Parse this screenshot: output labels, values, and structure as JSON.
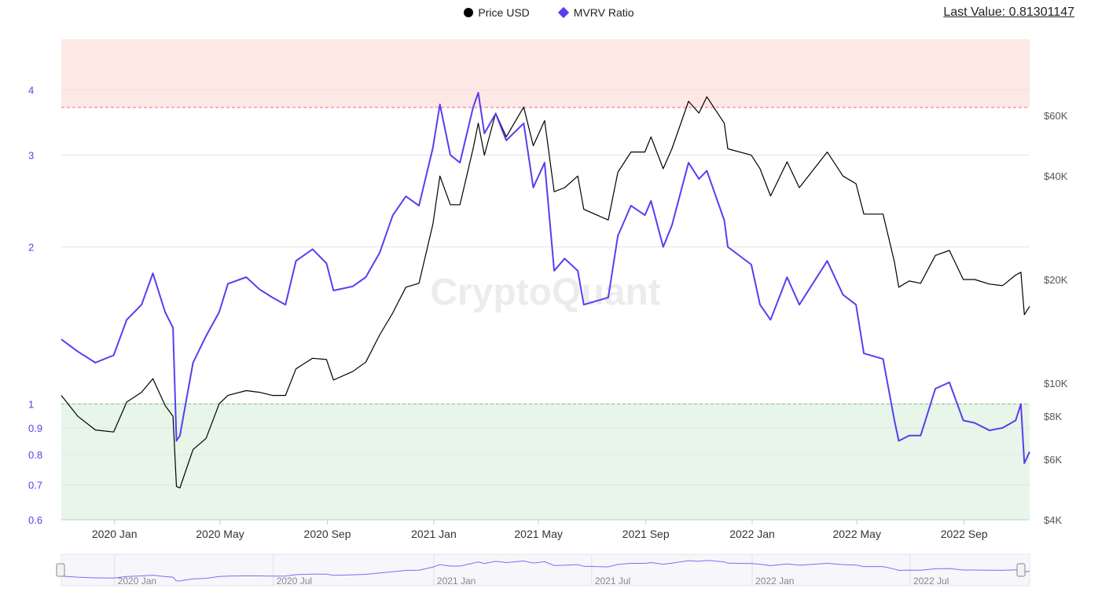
{
  "legend": {
    "price": {
      "label": "Price USD",
      "color": "#000000"
    },
    "mvrv": {
      "label": "MVRV Ratio",
      "color": "#5a3df0"
    }
  },
  "last_value": "Last Value: 0.81301147",
  "watermark": "CryptoQuant",
  "zones": {
    "upper_threshold": 3.7,
    "upper_color": "#fde8e6",
    "upper_line_color": "#e57373",
    "lower_threshold": 1.0,
    "lower_color": "#e8f5e9",
    "lower_line_color": "#7cc47f"
  },
  "chart_data": {
    "type": "line",
    "x_start": "2019-11-01",
    "x_end": "2022-11-15",
    "x_ticks": [
      {
        "date": "2020-01-01",
        "label": "2020 Jan"
      },
      {
        "date": "2020-05-01",
        "label": "2020 May"
      },
      {
        "date": "2020-09-01",
        "label": "2020 Sep"
      },
      {
        "date": "2021-01-01",
        "label": "2021 Jan"
      },
      {
        "date": "2021-05-01",
        "label": "2021 May"
      },
      {
        "date": "2021-09-01",
        "label": "2021 Sep"
      },
      {
        "date": "2022-01-01",
        "label": "2022 Jan"
      },
      {
        "date": "2022-05-01",
        "label": "2022 May"
      },
      {
        "date": "2022-09-01",
        "label": "2022 Sep"
      }
    ],
    "y_left": {
      "scale": "log",
      "range": [
        0.6,
        5.0
      ],
      "ticks": [
        0.6,
        0.7,
        0.8,
        0.9,
        1,
        2,
        3,
        4
      ],
      "labels": [
        "0.6",
        "0.7",
        "0.8",
        "0.9",
        "1",
        "2",
        "3",
        "4"
      ],
      "color": "#5a3df0"
    },
    "y_right": {
      "scale": "log",
      "range": [
        4000,
        100000
      ],
      "ticks": [
        4000,
        6000,
        8000,
        10000,
        20000,
        40000,
        60000
      ],
      "labels": [
        "$4K",
        "$6K",
        "$8K",
        "$10K",
        "$20K",
        "$40K",
        "$60K"
      ]
    },
    "series": [
      {
        "name": "Price USD",
        "axis": "right",
        "color": "#000000",
        "points": [
          [
            "2019-11-01",
            9200
          ],
          [
            "2019-11-20",
            8000
          ],
          [
            "2019-12-10",
            7300
          ],
          [
            "2019-12-31",
            7200
          ],
          [
            "2020-01-15",
            8800
          ],
          [
            "2020-02-01",
            9400
          ],
          [
            "2020-02-14",
            10300
          ],
          [
            "2020-02-28",
            8600
          ],
          [
            "2020-03-08",
            8000
          ],
          [
            "2020-03-12",
            5000
          ],
          [
            "2020-03-16",
            4950
          ],
          [
            "2020-03-31",
            6400
          ],
          [
            "2020-04-15",
            6900
          ],
          [
            "2020-04-30",
            8700
          ],
          [
            "2020-05-10",
            9200
          ],
          [
            "2020-05-31",
            9500
          ],
          [
            "2020-06-15",
            9400
          ],
          [
            "2020-06-30",
            9200
          ],
          [
            "2020-07-15",
            9200
          ],
          [
            "2020-07-27",
            11000
          ],
          [
            "2020-08-15",
            11800
          ],
          [
            "2020-08-31",
            11700
          ],
          [
            "2020-09-08",
            10200
          ],
          [
            "2020-09-30",
            10800
          ],
          [
            "2020-10-15",
            11500
          ],
          [
            "2020-10-31",
            13800
          ],
          [
            "2020-11-15",
            16000
          ],
          [
            "2020-11-30",
            19000
          ],
          [
            "2020-12-15",
            19500
          ],
          [
            "2020-12-31",
            29000
          ],
          [
            "2021-01-08",
            40000
          ],
          [
            "2021-01-20",
            33000
          ],
          [
            "2021-01-31",
            33000
          ],
          [
            "2021-02-15",
            48000
          ],
          [
            "2021-02-21",
            57000
          ],
          [
            "2021-02-28",
            46000
          ],
          [
            "2021-03-13",
            61000
          ],
          [
            "2021-03-25",
            52000
          ],
          [
            "2021-04-14",
            63500
          ],
          [
            "2021-04-25",
            49000
          ],
          [
            "2021-05-08",
            58000
          ],
          [
            "2021-05-19",
            36000
          ],
          [
            "2021-05-31",
            37000
          ],
          [
            "2021-06-15",
            40000
          ],
          [
            "2021-06-22",
            32000
          ],
          [
            "2021-07-20",
            29800
          ],
          [
            "2021-07-31",
            41000
          ],
          [
            "2021-08-15",
            47000
          ],
          [
            "2021-08-31",
            47000
          ],
          [
            "2021-09-07",
            52000
          ],
          [
            "2021-09-21",
            42000
          ],
          [
            "2021-10-01",
            48000
          ],
          [
            "2021-10-20",
            66000
          ],
          [
            "2021-11-01",
            61000
          ],
          [
            "2021-11-10",
            68000
          ],
          [
            "2021-11-30",
            57000
          ],
          [
            "2021-12-04",
            48000
          ],
          [
            "2021-12-31",
            46000
          ],
          [
            "2022-01-10",
            42000
          ],
          [
            "2022-01-22",
            35000
          ],
          [
            "2022-02-10",
            44000
          ],
          [
            "2022-02-24",
            37000
          ],
          [
            "2022-03-28",
            47000
          ],
          [
            "2022-04-15",
            40000
          ],
          [
            "2022-04-30",
            38000
          ],
          [
            "2022-05-09",
            31000
          ],
          [
            "2022-05-31",
            31000
          ],
          [
            "2022-06-13",
            22500
          ],
          [
            "2022-06-18",
            19000
          ],
          [
            "2022-06-30",
            19800
          ],
          [
            "2022-07-13",
            19500
          ],
          [
            "2022-07-30",
            23500
          ],
          [
            "2022-08-15",
            24300
          ],
          [
            "2022-08-31",
            20000
          ],
          [
            "2022-09-13",
            20000
          ],
          [
            "2022-09-30",
            19400
          ],
          [
            "2022-10-15",
            19200
          ],
          [
            "2022-10-30",
            20600
          ],
          [
            "2022-11-05",
            21000
          ],
          [
            "2022-11-09",
            15800
          ],
          [
            "2022-11-15",
            16700
          ]
        ]
      },
      {
        "name": "MVRV Ratio",
        "axis": "left",
        "color": "#5a3df0",
        "points": [
          [
            "2019-11-01",
            1.33
          ],
          [
            "2019-11-20",
            1.26
          ],
          [
            "2019-12-10",
            1.2
          ],
          [
            "2019-12-31",
            1.24
          ],
          [
            "2020-01-15",
            1.45
          ],
          [
            "2020-02-01",
            1.55
          ],
          [
            "2020-02-14",
            1.78
          ],
          [
            "2020-02-28",
            1.5
          ],
          [
            "2020-03-08",
            1.4
          ],
          [
            "2020-03-12",
            0.85
          ],
          [
            "2020-03-16",
            0.87
          ],
          [
            "2020-03-31",
            1.2
          ],
          [
            "2020-04-15",
            1.35
          ],
          [
            "2020-04-30",
            1.5
          ],
          [
            "2020-05-10",
            1.7
          ],
          [
            "2020-05-31",
            1.75
          ],
          [
            "2020-06-15",
            1.66
          ],
          [
            "2020-06-30",
            1.6
          ],
          [
            "2020-07-15",
            1.55
          ],
          [
            "2020-07-27",
            1.88
          ],
          [
            "2020-08-15",
            1.98
          ],
          [
            "2020-08-31",
            1.86
          ],
          [
            "2020-09-08",
            1.65
          ],
          [
            "2020-09-30",
            1.68
          ],
          [
            "2020-10-15",
            1.75
          ],
          [
            "2020-10-31",
            1.95
          ],
          [
            "2020-11-15",
            2.3
          ],
          [
            "2020-11-30",
            2.5
          ],
          [
            "2020-12-15",
            2.4
          ],
          [
            "2020-12-31",
            3.1
          ],
          [
            "2021-01-08",
            3.75
          ],
          [
            "2021-01-20",
            3.0
          ],
          [
            "2021-01-31",
            2.9
          ],
          [
            "2021-02-15",
            3.7
          ],
          [
            "2021-02-21",
            3.95
          ],
          [
            "2021-02-28",
            3.3
          ],
          [
            "2021-03-13",
            3.6
          ],
          [
            "2021-03-25",
            3.2
          ],
          [
            "2021-04-14",
            3.45
          ],
          [
            "2021-04-25",
            2.6
          ],
          [
            "2021-05-08",
            2.9
          ],
          [
            "2021-05-19",
            1.8
          ],
          [
            "2021-05-31",
            1.9
          ],
          [
            "2021-06-15",
            1.8
          ],
          [
            "2021-06-22",
            1.55
          ],
          [
            "2021-07-20",
            1.6
          ],
          [
            "2021-07-31",
            2.1
          ],
          [
            "2021-08-15",
            2.4
          ],
          [
            "2021-08-31",
            2.3
          ],
          [
            "2021-09-07",
            2.45
          ],
          [
            "2021-09-21",
            2.0
          ],
          [
            "2021-10-01",
            2.2
          ],
          [
            "2021-10-20",
            2.9
          ],
          [
            "2021-11-01",
            2.7
          ],
          [
            "2021-11-10",
            2.8
          ],
          [
            "2021-11-30",
            2.25
          ],
          [
            "2021-12-04",
            2.0
          ],
          [
            "2021-12-31",
            1.85
          ],
          [
            "2022-01-10",
            1.55
          ],
          [
            "2022-01-22",
            1.45
          ],
          [
            "2022-02-10",
            1.75
          ],
          [
            "2022-02-24",
            1.55
          ],
          [
            "2022-03-28",
            1.88
          ],
          [
            "2022-04-15",
            1.62
          ],
          [
            "2022-04-30",
            1.55
          ],
          [
            "2022-05-09",
            1.25
          ],
          [
            "2022-05-31",
            1.22
          ],
          [
            "2022-06-13",
            0.93
          ],
          [
            "2022-06-18",
            0.85
          ],
          [
            "2022-06-30",
            0.87
          ],
          [
            "2022-07-13",
            0.87
          ],
          [
            "2022-07-30",
            1.07
          ],
          [
            "2022-08-15",
            1.1
          ],
          [
            "2022-08-31",
            0.93
          ],
          [
            "2022-09-13",
            0.92
          ],
          [
            "2022-09-30",
            0.89
          ],
          [
            "2022-10-15",
            0.9
          ],
          [
            "2022-10-30",
            0.93
          ],
          [
            "2022-11-05",
            1.0
          ],
          [
            "2022-11-09",
            0.77
          ],
          [
            "2022-11-15",
            0.81
          ]
        ]
      }
    ],
    "grid": true
  },
  "navigator": {
    "ticks": [
      {
        "date": "2020-01-01",
        "label": "2020 Jan"
      },
      {
        "date": "2020-07-01",
        "label": "2020 Jul"
      },
      {
        "date": "2021-01-01",
        "label": "2021 Jan"
      },
      {
        "date": "2021-07-01",
        "label": "2021 Jul"
      },
      {
        "date": "2022-01-01",
        "label": "2022 Jan"
      },
      {
        "date": "2022-07-01",
        "label": "2022 Jul"
      }
    ]
  }
}
